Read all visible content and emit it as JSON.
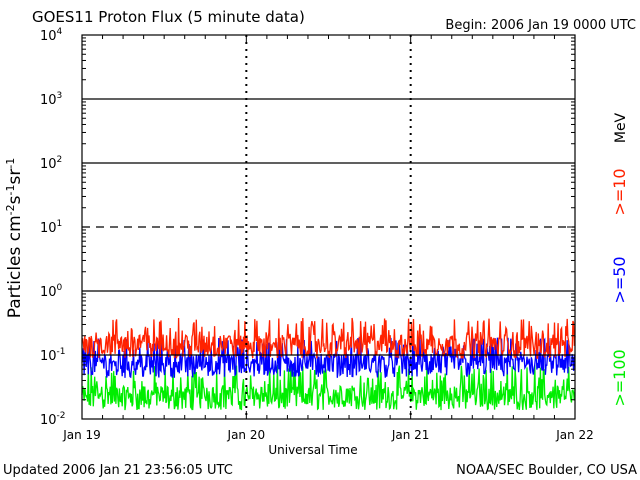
{
  "header": {
    "title": "GOES11 Proton Flux (5 minute data)",
    "begin": "Begin: 2006 Jan 19 0000 UTC"
  },
  "footer": {
    "updated": "Updated 2006 Jan 21 23:56:05 UTC",
    "source": "NOAA/SEC Boulder, CO USA"
  },
  "chart_data": {
    "type": "line",
    "title": "GOES11 Proton Flux (5 minute data)",
    "xlabel": "Universal Time",
    "ylabel_parts": [
      "Particles cm",
      "-2",
      "s",
      "-1",
      "sr",
      "-1"
    ],
    "y_scale": "log",
    "ylim": [
      0.01,
      10000
    ],
    "y_ticks": [
      {
        "value": 10000,
        "base": "10",
        "exp": "4"
      },
      {
        "value": 1000,
        "base": "10",
        "exp": "3"
      },
      {
        "value": 100,
        "base": "10",
        "exp": "2"
      },
      {
        "value": 10,
        "base": "10",
        "exp": "1"
      },
      {
        "value": 1,
        "base": "10",
        "exp": "0"
      },
      {
        "value": 0.1,
        "base": "10",
        "exp": "-1"
      },
      {
        "value": 0.01,
        "base": "10",
        "exp": "-2"
      }
    ],
    "x_ticks": [
      "Jan 19",
      "Jan 20",
      "Jan 21",
      "Jan 22"
    ],
    "xlim_days": [
      0,
      3
    ],
    "threshold_lines": [
      {
        "value": 1000,
        "style": "solid"
      },
      {
        "value": 100,
        "style": "solid"
      },
      {
        "value": 10,
        "style": "dashed"
      },
      {
        "value": 1,
        "style": "solid"
      },
      {
        "value": 0.1,
        "style": "solid"
      }
    ],
    "units_label": "MeV",
    "series": [
      {
        "name": ">=10",
        "color": "#ff2200",
        "baseline": 0.16,
        "peak": 0.38
      },
      {
        "name": ">=50",
        "color": "#0000ff",
        "baseline": 0.08,
        "peak": 0.19
      },
      {
        "name": ">=100",
        "color": "#00ee00",
        "baseline": 0.025,
        "peak": 0.07
      }
    ]
  }
}
